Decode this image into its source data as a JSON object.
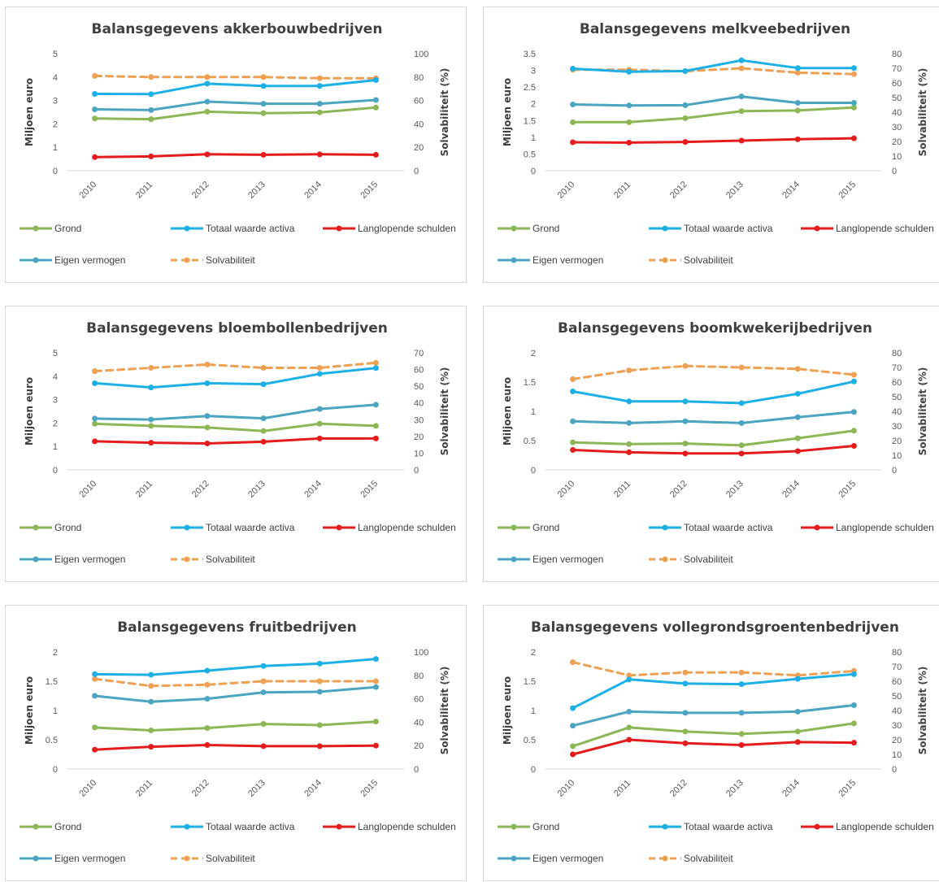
{
  "colors": {
    "grond": "#8cb754",
    "totaal": "#1cb0e6",
    "schulden": "#e41c1c",
    "eigen": "#4ba4c0",
    "solv": "#f0a052"
  },
  "legend": {
    "grond": "Grond",
    "totaal": "Totaal waarde activa",
    "schulden": "Langlopende schulden",
    "eigen": "Eigen vermogen",
    "solv": "Solvabiliteit"
  },
  "chart_data": [
    {
      "type": "line",
      "title": "Balansgegevens akkerbouwbedrijven",
      "x": [
        "2010",
        "2011",
        "2012",
        "2013",
        "2014",
        "2015"
      ],
      "ylabel": "Miljoen euro",
      "y2label": "Solvabiliteit (%)",
      "ylim": [
        0,
        5
      ],
      "yticks": [
        "0",
        "1",
        "2",
        "3",
        "4",
        "5"
      ],
      "y2lim": [
        0,
        100
      ],
      "y2ticks": [
        "0",
        "20",
        "40",
        "60",
        "80",
        "100"
      ],
      "grid": false,
      "legend_position": "bottom",
      "series": [
        {
          "key": "grond",
          "name": "Grond",
          "axis": "left",
          "values": [
            2.23,
            2.2,
            2.52,
            2.46,
            2.49,
            2.7
          ]
        },
        {
          "key": "totaal",
          "name": "Totaal waarde activa",
          "axis": "left",
          "values": [
            3.28,
            3.27,
            3.72,
            3.62,
            3.62,
            3.87
          ]
        },
        {
          "key": "schulden",
          "name": "Langlopende schulden",
          "axis": "left",
          "values": [
            0.58,
            0.61,
            0.7,
            0.68,
            0.7,
            0.68
          ]
        },
        {
          "key": "eigen",
          "name": "Eigen vermogen",
          "axis": "left",
          "values": [
            2.62,
            2.59,
            2.95,
            2.86,
            2.86,
            3.02
          ]
        },
        {
          "key": "solv",
          "name": "Solvabiliteit",
          "axis": "right",
          "values": [
            81,
            80,
            80,
            80,
            79,
            79
          ]
        }
      ]
    },
    {
      "type": "line",
      "title": "Balansgegevens melkveebedrijven",
      "x": [
        "2010",
        "2011",
        "2012",
        "2013",
        "2014",
        "2015"
      ],
      "ylabel": "Miljoen euro",
      "y2label": "Solvabiliteit (%)",
      "ylim": [
        0,
        3.5
      ],
      "yticks": [
        "0",
        "0.5",
        "1",
        "1.5",
        "2",
        "2.5",
        "3",
        "3.5"
      ],
      "y2lim": [
        0,
        80
      ],
      "y2ticks": [
        "0",
        "10",
        "20",
        "30",
        "40",
        "50",
        "60",
        "70",
        "80"
      ],
      "grid": false,
      "legend_position": "bottom",
      "series": [
        {
          "key": "grond",
          "name": "Grond",
          "axis": "left",
          "values": [
            1.45,
            1.45,
            1.57,
            1.78,
            1.8,
            1.89
          ]
        },
        {
          "key": "totaal",
          "name": "Totaal waarde activa",
          "axis": "left",
          "values": [
            3.05,
            2.96,
            2.98,
            3.3,
            3.07,
            3.07
          ]
        },
        {
          "key": "schulden",
          "name": "Langlopende schulden",
          "axis": "left",
          "values": [
            0.85,
            0.84,
            0.86,
            0.9,
            0.94,
            0.97
          ]
        },
        {
          "key": "eigen",
          "name": "Eigen vermogen",
          "axis": "left",
          "values": [
            1.98,
            1.95,
            1.96,
            2.22,
            2.03,
            2.03
          ]
        },
        {
          "key": "solv",
          "name": "Solvabiliteit",
          "axis": "right",
          "values": [
            69,
            69,
            68,
            70,
            67,
            66
          ]
        }
      ]
    },
    {
      "type": "line",
      "title": "Balansgegevens bloembollenbedrijven",
      "x": [
        "2010",
        "2011",
        "2012",
        "2013",
        "2014",
        "2015"
      ],
      "ylabel": "Miljoen euro",
      "y2label": "Solvabiliteit (%)",
      "ylim": [
        0,
        5
      ],
      "yticks": [
        "0",
        "1",
        "2",
        "3",
        "4",
        "5"
      ],
      "y2lim": [
        0,
        70
      ],
      "y2ticks": [
        "0",
        "10",
        "20",
        "30",
        "40",
        "50",
        "60",
        "70"
      ],
      "grid": false,
      "legend_position": "bottom",
      "series": [
        {
          "key": "grond",
          "name": "Grond",
          "axis": "left",
          "values": [
            1.97,
            1.88,
            1.81,
            1.66,
            1.97,
            1.88
          ]
        },
        {
          "key": "totaal",
          "name": "Totaal waarde activa",
          "axis": "left",
          "values": [
            3.7,
            3.52,
            3.7,
            3.66,
            4.1,
            4.35
          ]
        },
        {
          "key": "schulden",
          "name": "Langlopende schulden",
          "axis": "left",
          "values": [
            1.22,
            1.16,
            1.13,
            1.2,
            1.34,
            1.34
          ]
        },
        {
          "key": "eigen",
          "name": "Eigen vermogen",
          "axis": "left",
          "values": [
            2.19,
            2.15,
            2.3,
            2.2,
            2.6,
            2.78
          ]
        },
        {
          "key": "solv",
          "name": "Solvabiliteit",
          "axis": "right",
          "values": [
            59,
            61,
            63,
            61,
            61,
            64
          ]
        }
      ]
    },
    {
      "type": "line",
      "title": "Balansgegevens boomkwekerijbedrijven",
      "x": [
        "2010",
        "2011",
        "2012",
        "2013",
        "2014",
        "2015"
      ],
      "ylabel": "Miljoen euro",
      "y2label": "Solvabiliteit (%)",
      "ylim": [
        0,
        2
      ],
      "yticks": [
        "0",
        "0.5",
        "1",
        "1.5",
        "2"
      ],
      "y2lim": [
        0,
        80
      ],
      "y2ticks": [
        "0",
        "10",
        "20",
        "30",
        "40",
        "50",
        "60",
        "70",
        "80"
      ],
      "grid": false,
      "legend_position": "bottom",
      "series": [
        {
          "key": "grond",
          "name": "Grond",
          "axis": "left",
          "values": [
            0.47,
            0.44,
            0.45,
            0.42,
            0.54,
            0.67
          ]
        },
        {
          "key": "totaal",
          "name": "Totaal waarde activa",
          "axis": "left",
          "values": [
            1.34,
            1.17,
            1.17,
            1.14,
            1.3,
            1.51
          ]
        },
        {
          "key": "schulden",
          "name": "Langlopende schulden",
          "axis": "left",
          "values": [
            0.34,
            0.3,
            0.28,
            0.28,
            0.32,
            0.41
          ]
        },
        {
          "key": "eigen",
          "name": "Eigen vermogen",
          "axis": "left",
          "values": [
            0.83,
            0.8,
            0.83,
            0.8,
            0.9,
            0.99
          ]
        },
        {
          "key": "solv",
          "name": "Solvabiliteit",
          "axis": "right",
          "values": [
            62,
            68,
            71,
            70,
            69,
            65
          ]
        }
      ]
    },
    {
      "type": "line",
      "title": "Balansgegevens fruitbedrijven",
      "x": [
        "2010",
        "2011",
        "2012",
        "2013",
        "2014",
        "2015"
      ],
      "ylabel": "Miljoen euro",
      "y2label": "Solvabiliteit (%)",
      "ylim": [
        0,
        2
      ],
      "yticks": [
        "0",
        "0.5",
        "1",
        "1.5",
        "2"
      ],
      "y2lim": [
        0,
        100
      ],
      "y2ticks": [
        "0",
        "20",
        "40",
        "60",
        "80",
        "100"
      ],
      "grid": false,
      "legend_position": "bottom",
      "series": [
        {
          "key": "grond",
          "name": "Grond",
          "axis": "left",
          "values": [
            0.71,
            0.66,
            0.7,
            0.77,
            0.75,
            0.81
          ]
        },
        {
          "key": "totaal",
          "name": "Totaal waarde activa",
          "axis": "left",
          "values": [
            1.62,
            1.61,
            1.68,
            1.76,
            1.8,
            1.88
          ]
        },
        {
          "key": "schulden",
          "name": "Langlopende schulden",
          "axis": "left",
          "values": [
            0.33,
            0.38,
            0.41,
            0.39,
            0.39,
            0.4
          ]
        },
        {
          "key": "eigen",
          "name": "Eigen vermogen",
          "axis": "left",
          "values": [
            1.25,
            1.15,
            1.2,
            1.31,
            1.32,
            1.4
          ]
        },
        {
          "key": "solv",
          "name": "Solvabiliteit",
          "axis": "right",
          "values": [
            77,
            71,
            72,
            75,
            75,
            75
          ]
        }
      ]
    },
    {
      "type": "line",
      "title": "Balansgegevens vollegrondsgroentenbedrijven",
      "x": [
        "2010",
        "2011",
        "2012",
        "2013",
        "2014",
        "2015"
      ],
      "ylabel": "Miljoen euro",
      "y2label": "Solvabiliteit (%)",
      "ylim": [
        0,
        2
      ],
      "yticks": [
        "0",
        "0.5",
        "1",
        "1.5",
        "2"
      ],
      "y2lim": [
        0,
        80
      ],
      "y2ticks": [
        "0",
        "10",
        "20",
        "30",
        "40",
        "50",
        "60",
        "70",
        "80"
      ],
      "grid": false,
      "legend_position": "bottom",
      "series": [
        {
          "key": "grond",
          "name": "Grond",
          "axis": "left",
          "values": [
            0.39,
            0.71,
            0.64,
            0.6,
            0.64,
            0.78
          ]
        },
        {
          "key": "totaal",
          "name": "Totaal waarde activa",
          "axis": "left",
          "values": [
            1.04,
            1.53,
            1.46,
            1.45,
            1.54,
            1.62
          ]
        },
        {
          "key": "schulden",
          "name": "Langlopende schulden",
          "axis": "left",
          "values": [
            0.25,
            0.5,
            0.44,
            0.41,
            0.46,
            0.45
          ]
        },
        {
          "key": "eigen",
          "name": "Eigen vermogen",
          "axis": "left",
          "values": [
            0.74,
            0.98,
            0.96,
            0.96,
            0.98,
            1.09
          ]
        },
        {
          "key": "solv",
          "name": "Solvabiliteit",
          "axis": "right",
          "values": [
            73,
            64,
            66,
            66,
            64,
            67
          ]
        }
      ]
    }
  ]
}
